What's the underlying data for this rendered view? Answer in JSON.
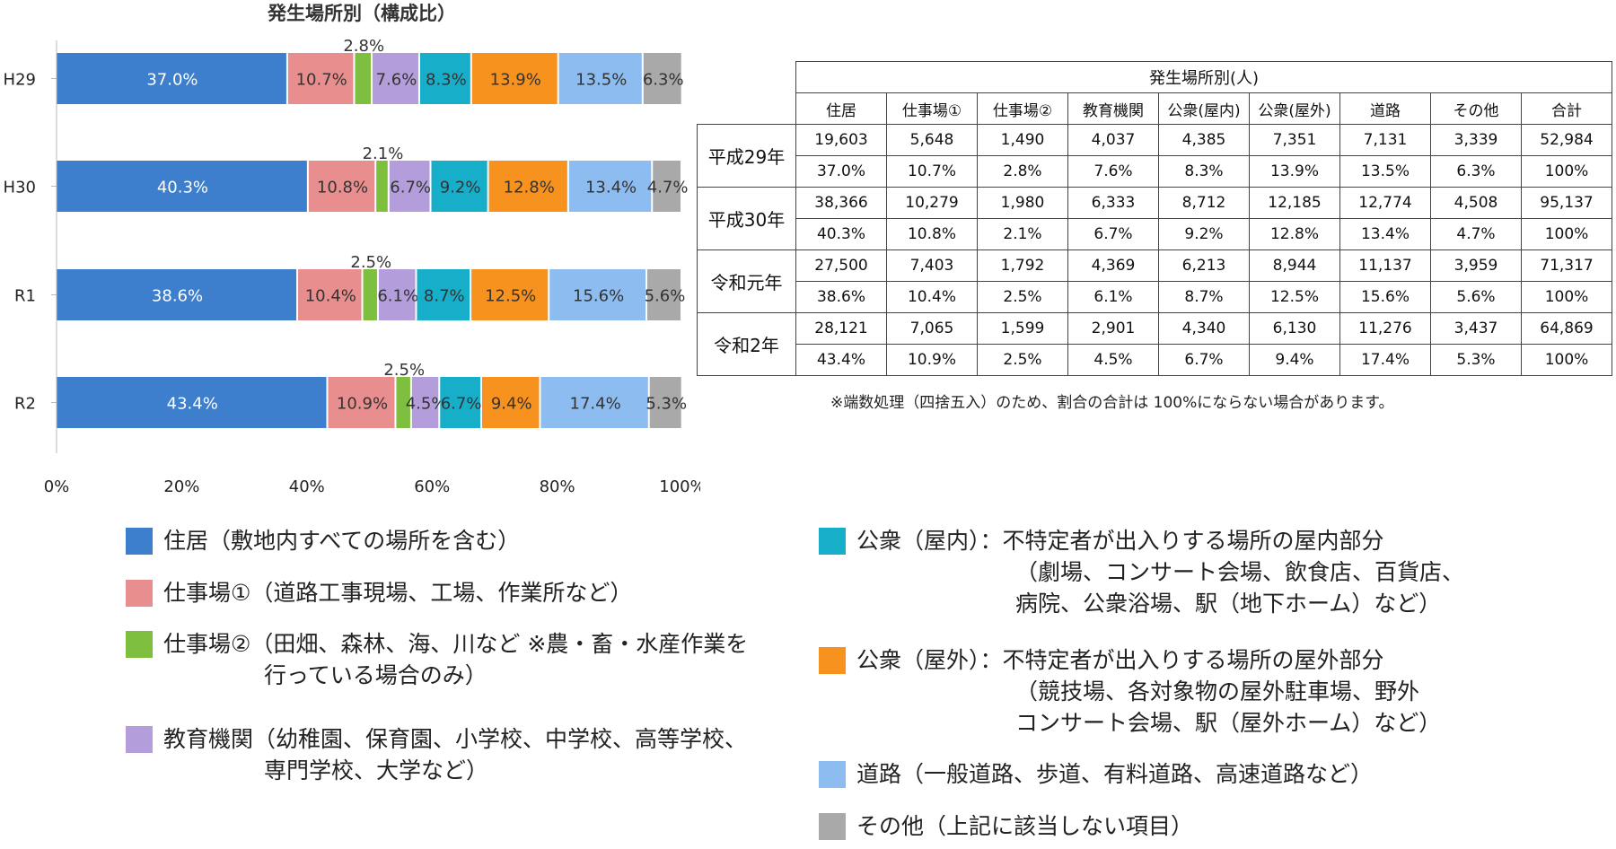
{
  "chart_data": {
    "type": "bar",
    "orientation": "horizontal",
    "stacked": "percent",
    "title": "発生場所別（構成比）",
    "categories": [
      "H29",
      "H30",
      "R1",
      "R2"
    ],
    "xlim": [
      0,
      100
    ],
    "x_ticks": [
      "0%",
      "20%",
      "40%",
      "60%",
      "80%",
      "100%"
    ],
    "series": [
      {
        "name": "住居",
        "color": "#3d7fcc",
        "values": [
          37.0,
          40.3,
          38.6,
          43.4
        ],
        "labels": [
          "37.0%",
          "40.3%",
          "38.6%",
          "43.4%"
        ]
      },
      {
        "name": "仕事場①",
        "color": "#e88e8e",
        "values": [
          10.7,
          10.8,
          10.4,
          10.9
        ],
        "labels": [
          "10.7%",
          "10.8%",
          "10.4%",
          "10.9%"
        ]
      },
      {
        "name": "仕事場②",
        "color": "#7fbf3f",
        "values": [
          2.8,
          2.1,
          2.5,
          2.5
        ],
        "labels": [
          "2.8%",
          "2.1%",
          "2.5%",
          "2.5%"
        ]
      },
      {
        "name": "教育機関",
        "color": "#b39ddb",
        "values": [
          7.6,
          6.7,
          6.1,
          4.5
        ],
        "labels": [
          "7.6%",
          "6.7%",
          "6.1%",
          "4.5%"
        ]
      },
      {
        "name": "公衆(屋内)",
        "color": "#17aec9",
        "values": [
          8.3,
          9.2,
          8.7,
          6.7
        ],
        "labels": [
          "8.3%",
          "9.2%",
          "8.7%",
          "6.7%"
        ]
      },
      {
        "name": "公衆(屋外)",
        "color": "#f7921e",
        "values": [
          13.9,
          12.8,
          12.5,
          9.4
        ],
        "labels": [
          "13.9%",
          "12.8%",
          "12.5%",
          "9.4%"
        ]
      },
      {
        "name": "道路",
        "color": "#8dbcf0",
        "values": [
          13.5,
          13.4,
          15.6,
          17.4
        ],
        "labels": [
          "13.5%",
          "13.4%",
          "15.6%",
          "17.4%"
        ]
      },
      {
        "name": "その他",
        "color": "#a9a9a9",
        "values": [
          6.3,
          4.7,
          5.6,
          5.3
        ],
        "labels": [
          "6.3%",
          "4.7%",
          "5.6%",
          "5.3%"
        ]
      }
    ],
    "grid": false
  },
  "table": {
    "header_group": "発生場所別(人)",
    "columns": [
      "住居",
      "仕事場①",
      "仕事場②",
      "教育機関",
      "公衆(屋内)",
      "公衆(屋外)",
      "道路",
      "その他",
      "合計"
    ],
    "rows": [
      {
        "year": "平成29年",
        "counts": [
          "19,603",
          "5,648",
          "1,490",
          "4,037",
          "4,385",
          "7,351",
          "7,131",
          "3,339",
          "52,984"
        ],
        "pcts": [
          "37.0%",
          "10.7%",
          "2.8%",
          "7.6%",
          "8.3%",
          "13.9%",
          "13.5%",
          "6.3%",
          "100%"
        ]
      },
      {
        "year": "平成30年",
        "counts": [
          "38,366",
          "10,279",
          "1,980",
          "6,333",
          "8,712",
          "12,185",
          "12,774",
          "4,508",
          "95,137"
        ],
        "pcts": [
          "40.3%",
          "10.8%",
          "2.1%",
          "6.7%",
          "9.2%",
          "12.8%",
          "13.4%",
          "4.7%",
          "100%"
        ]
      },
      {
        "year": "令和元年",
        "counts": [
          "27,500",
          "7,403",
          "1,792",
          "4,369",
          "6,213",
          "8,944",
          "11,137",
          "3,959",
          "71,317"
        ],
        "pcts": [
          "38.6%",
          "10.4%",
          "2.5%",
          "6.1%",
          "8.7%",
          "12.5%",
          "15.6%",
          "5.6%",
          "100%"
        ]
      },
      {
        "year": "令和2年",
        "counts": [
          "28,121",
          "7,065",
          "1,599",
          "2,901",
          "4,340",
          "6,130",
          "11,276",
          "3,437",
          "64,869"
        ],
        "pcts": [
          "43.4%",
          "10.9%",
          "2.5%",
          "4.5%",
          "6.7%",
          "9.4%",
          "17.4%",
          "5.3%",
          "100%"
        ]
      }
    ],
    "note": "※端数処理（四捨五入）のため、割合の合計は 100%にならない場合があります。"
  },
  "legend": {
    "left": [
      {
        "color": "#3d7fcc",
        "lines": [
          "住居（敷地内すべての場所を含む）"
        ]
      },
      {
        "color": "#e88e8e",
        "lines": [
          "仕事場①（道路工事現場、工場、作業所など）"
        ]
      },
      {
        "color": "#7fbf3f",
        "lines": [
          "仕事場②（田畑、森林、海、川など ※農・畜・水産作業を",
          "行っている場合のみ）"
        ]
      },
      {
        "color": "#b39ddb",
        "lines": [
          "教育機関（幼稚園、保育園、小学校、中学校、高等学校、",
          "専門学校、大学など）"
        ]
      }
    ],
    "right": [
      {
        "color": "#17aec9",
        "lines": [
          "公衆（屋内）：不特定者が出入りする場所の屋内部分",
          "（劇場、コンサート会場、飲食店、百貨店、",
          "病院、公衆浴場、駅（地下ホーム）など）"
        ]
      },
      {
        "color": "#f7921e",
        "lines": [
          "公衆（屋外）：不特定者が出入りする場所の屋外部分",
          "（競技場、各対象物の屋外駐車場、野外",
          "コンサート会場、駅（屋外ホーム）など）"
        ]
      },
      {
        "color": "#8dbcf0",
        "lines": [
          "道路（一般道路、歩道、有料道路、高速道路など）"
        ]
      },
      {
        "color": "#a9a9a9",
        "lines": [
          "その他（上記に該当しない項目）"
        ]
      }
    ]
  }
}
